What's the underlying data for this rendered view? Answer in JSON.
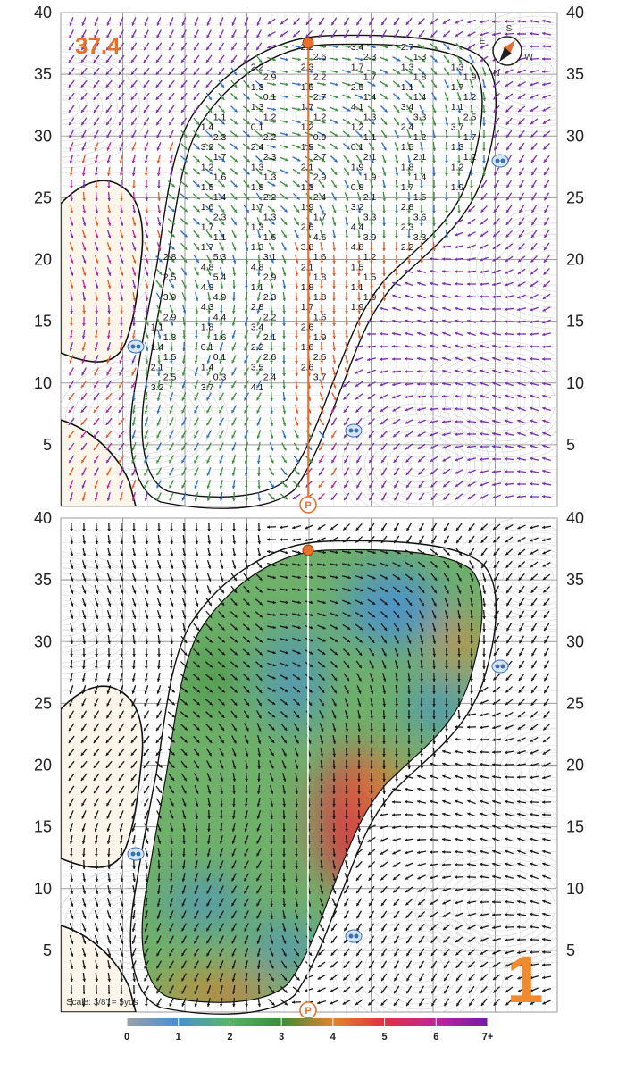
{
  "map": {
    "hole_number": "1",
    "stimp": "37.4",
    "scale_label": "Scale: 3/8\" = 5yds",
    "compass_letters": {
      "n": "N",
      "e": "E",
      "s": "S",
      "w": "W"
    },
    "y_ticks": [
      "5",
      "10",
      "15",
      "20",
      "25",
      "30",
      "35",
      "40"
    ],
    "colorbar_labels": [
      "0",
      "1",
      "2",
      "3",
      "4",
      "5",
      "6",
      "7+"
    ],
    "colorbar_colors": [
      "#9aa0a8",
      "#4a8fd0",
      "#5db36a",
      "#3e8a3a",
      "#e0862f",
      "#e6303f",
      "#c0249a",
      "#6d1fa3"
    ],
    "accent_color": "#e8702a",
    "slope_values": [
      "2.2",
      "3.4",
      "2.7",
      "2.6",
      "2.3",
      "1.3",
      "2.2",
      "2.3",
      "1.7",
      "1.3",
      "1.3",
      "2.9",
      "2.2",
      "1.7",
      "1.8",
      "1.9",
      "1.3",
      "1.5",
      "2.5",
      "1.1",
      "1.7",
      "0.1",
      "2.7",
      "1.4",
      "1.4",
      "1.2",
      "1.3",
      "1.7",
      "4.1",
      "3.4",
      "1.1",
      "1.1",
      "1.2",
      "1.2",
      "1.3",
      "3.3",
      "2.5",
      "1.4",
      "0.1",
      "1.2",
      "1.2",
      "2.4",
      "3.7",
      "2.3",
      "2.2",
      "0.9",
      "1.1",
      "1.2",
      "1.7",
      "3.2",
      "2.4",
      "1.5",
      "0.1",
      "1.5",
      "1.3",
      "1.7",
      "2.3",
      "2.7",
      "2.1",
      "2.1",
      "1.2",
      "1.2",
      "1.3",
      "2.1",
      "1.9",
      "1.8",
      "1.2",
      "1.6",
      "1.3",
      "2.9",
      "1.9",
      "1.4",
      "1.5",
      "1.8",
      "1.3",
      "0.8",
      "1.7",
      "1.9",
      "1.4",
      "2.2",
      "2.4",
      "2.1",
      "1.5",
      "1.6",
      "1.7",
      "1.9",
      "3.2",
      "2.8",
      "2.3",
      "1.3",
      "1.7",
      "3.3",
      "3.6",
      "1.7",
      "1.3",
      "2.6",
      "4.4",
      "2.3",
      "1.1",
      "1.6",
      "4.6",
      "3.9",
      "3.3",
      "1.7",
      "1.3",
      "3.8",
      "4.8",
      "2.2",
      "2.8",
      "5.3",
      "3.1",
      "1.6",
      "1.2",
      "4.8",
      "4.8",
      "2.1",
      "1.5",
      "2.5",
      "5.4",
      "2.9",
      "1.8",
      "1.5",
      "4.3",
      "1.1",
      "1.8",
      "1.1",
      "3.9",
      "4.9",
      "2.3",
      "1.8",
      "1.9",
      "4.3",
      "2.8",
      "1.7",
      "1.9",
      "2.9",
      "4.4",
      "2.2",
      "1.6",
      "1.1",
      "1.8",
      "3.4",
      "2.6",
      "1.3",
      "1.6",
      "2.1",
      "1.9",
      "1.4",
      "0.1",
      "2.2",
      "1.6",
      "1.5",
      "0.1",
      "2.6",
      "2.5",
      "2.1",
      "1.4",
      "3.5",
      "2.6",
      "2.5",
      "0.3",
      "2.4",
      "3.7",
      "3.2",
      "3.7",
      "4.1"
    ]
  }
}
